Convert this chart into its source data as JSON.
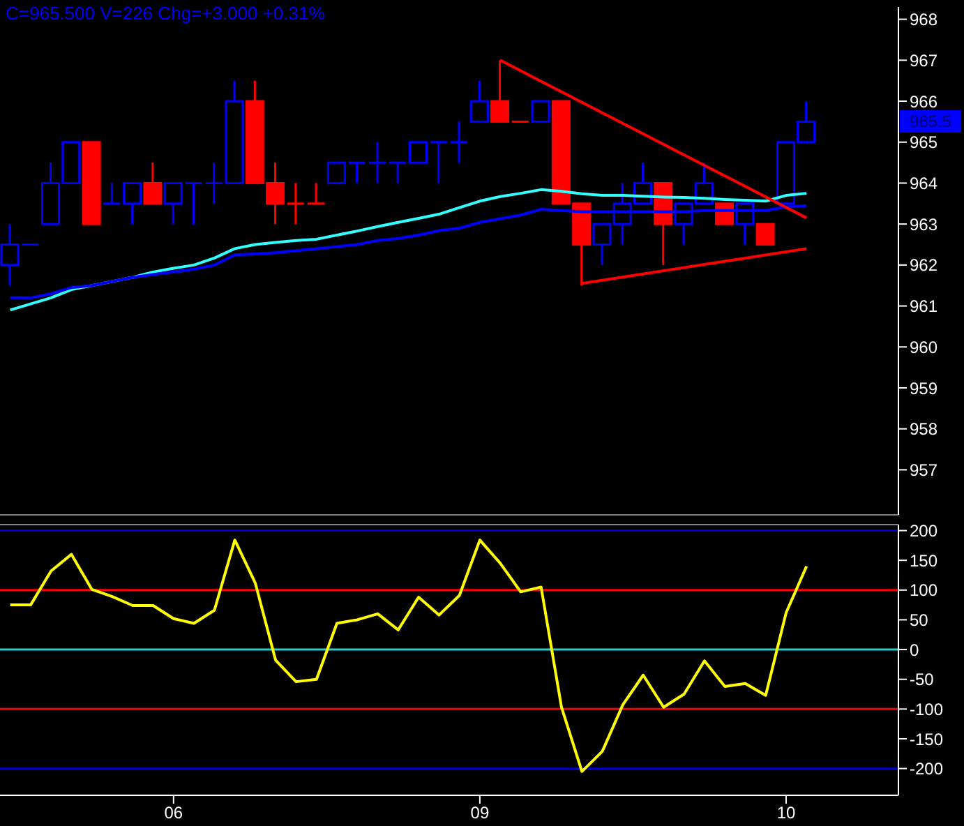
{
  "chart_data": [
    {
      "type": "candlestick",
      "title": "C=965.500  V=226  Chg=+3.000  +0.31%",
      "categories": [
        null,
        null,
        null,
        null,
        null,
        null,
        null,
        null,
        "06",
        null,
        null,
        null,
        null,
        null,
        null,
        null,
        null,
        null,
        null,
        null,
        null,
        null,
        null,
        "09",
        null,
        null,
        null,
        null,
        null,
        null,
        null,
        null,
        null,
        null,
        null,
        null,
        null,
        null,
        "10",
        null
      ],
      "ohlc": [
        [
          962,
          963,
          961.5,
          962.5
        ],
        [
          962.5,
          962.5,
          962.5,
          962.5
        ],
        [
          963,
          964.5,
          963,
          964
        ],
        [
          964,
          965,
          964,
          965
        ],
        [
          965,
          965,
          963,
          963
        ],
        [
          963.5,
          964,
          963.5,
          963.5
        ],
        [
          963.5,
          964,
          963,
          964
        ],
        [
          964,
          964.5,
          963.5,
          963.5
        ],
        [
          963.5,
          964,
          963,
          964
        ],
        [
          964,
          964,
          963,
          964
        ],
        [
          964,
          964.5,
          963.5,
          964
        ],
        [
          964,
          966.5,
          964,
          966
        ],
        [
          966,
          966.5,
          964,
          964
        ],
        [
          964,
          964.5,
          963,
          963.5
        ],
        [
          963.5,
          964,
          963,
          963.5
        ],
        [
          963.5,
          964,
          963.5,
          963.5
        ],
        [
          964,
          964.5,
          964,
          964.5
        ],
        [
          964.5,
          964.5,
          964,
          964.5
        ],
        [
          964.5,
          965,
          964,
          964.5
        ],
        [
          964.5,
          964.5,
          964,
          964.5
        ],
        [
          964.5,
          965,
          964.5,
          965
        ],
        [
          965,
          965,
          964,
          965
        ],
        [
          965,
          965.5,
          964.5,
          965
        ],
        [
          965.5,
          966.5,
          965.5,
          966
        ],
        [
          966,
          967,
          965.5,
          965.5
        ],
        [
          965.5,
          965.5,
          965.5,
          965.5
        ],
        [
          965.5,
          966,
          965.5,
          966
        ],
        [
          966,
          966,
          963.5,
          963.5
        ],
        [
          963.5,
          963.5,
          961.5,
          962.5
        ],
        [
          962.5,
          963,
          962,
          963
        ],
        [
          963,
          964,
          962.5,
          963.5
        ],
        [
          963.5,
          964.5,
          963.5,
          964
        ],
        [
          964,
          964,
          962,
          963
        ],
        [
          963,
          963.5,
          962.5,
          963.5
        ],
        [
          963.5,
          964.5,
          963.5,
          964
        ],
        [
          963.5,
          963.5,
          963,
          963
        ],
        [
          963,
          963.5,
          962.5,
          963.5
        ],
        [
          963,
          963,
          962.5,
          962.5
        ],
        [
          963.5,
          965,
          963.5,
          965
        ],
        [
          965,
          966,
          965,
          965.5
        ]
      ],
      "colors": [
        "#0000ff",
        "#0000ff",
        "#0000ff",
        "#0000ff",
        "#ff0000",
        "#0000ff",
        "#0000ff",
        "#ff0000",
        "#0000ff",
        "#0000ff",
        "#0000ff",
        "#0000ff",
        "#ff0000",
        "#ff0000",
        "#ff0000",
        "#ff0000",
        "#0000ff",
        "#0000ff",
        "#0000ff",
        "#0000ff",
        "#0000ff",
        "#0000ff",
        "#0000ff",
        "#0000ff",
        "#ff0000",
        "#ff0000",
        "#0000ff",
        "#ff0000",
        "#ff0000",
        "#0000ff",
        "#0000ff",
        "#0000ff",
        "#ff0000",
        "#0000ff",
        "#0000ff",
        "#ff0000",
        "#0000ff",
        "#ff0000",
        "#0000ff",
        "#0000ff"
      ],
      "series": [
        {
          "type": "line",
          "color": "#33ffff",
          "values": [
            960.9,
            961.05,
            961.2,
            961.4,
            961.5,
            961.6,
            961.7,
            961.83,
            961.92,
            962.0,
            962.17,
            962.4,
            962.5,
            962.55,
            962.6,
            962.63,
            962.73,
            962.83,
            962.94,
            963.04,
            963.14,
            963.24,
            963.4,
            963.56,
            963.67,
            963.75,
            963.84,
            963.8,
            963.74,
            963.7,
            963.7,
            963.68,
            963.66,
            963.65,
            963.63,
            963.6,
            963.58,
            963.56,
            963.7,
            963.75
          ]
        },
        {
          "type": "line",
          "color": "#0000ff",
          "values": [
            961.2,
            961.2,
            961.3,
            961.45,
            961.5,
            961.6,
            961.7,
            961.77,
            961.83,
            961.9,
            962.0,
            962.25,
            962.27,
            962.3,
            962.35,
            962.4,
            962.45,
            962.5,
            962.6,
            962.65,
            962.73,
            962.84,
            962.9,
            963.04,
            963.13,
            963.22,
            963.36,
            963.33,
            963.3,
            963.3,
            963.3,
            963.3,
            963.3,
            963.3,
            963.33,
            963.33,
            963.33,
            963.33,
            963.42,
            963.45
          ]
        },
        {
          "type": "line",
          "color": "#ff0000",
          "values": [
            null,
            null,
            null,
            null,
            null,
            null,
            null,
            null,
            null,
            null,
            null,
            null,
            null,
            null,
            null,
            null,
            null,
            null,
            null,
            null,
            null,
            null,
            null,
            null,
            967,
            null,
            null,
            null,
            null,
            null,
            null,
            null,
            null,
            null,
            null,
            null,
            null,
            null,
            null,
            963.15
          ]
        },
        {
          "type": "line",
          "color": "#ff0000",
          "values": [
            null,
            null,
            null,
            null,
            null,
            null,
            null,
            null,
            null,
            null,
            null,
            null,
            null,
            null,
            null,
            null,
            null,
            null,
            null,
            null,
            null,
            null,
            null,
            null,
            null,
            null,
            null,
            null,
            961.55,
            null,
            null,
            null,
            null,
            null,
            null,
            null,
            null,
            null,
            null,
            962.4
          ]
        }
      ],
      "ylim": [
        955.9,
        968.3
      ],
      "yticks": [
        957,
        958,
        959,
        960,
        961,
        962,
        963,
        964,
        965,
        966,
        967,
        968
      ],
      "tick_labels": "y",
      "annotations": [
        "965.5"
      ]
    },
    {
      "type": "line",
      "categories": [
        null,
        null,
        null,
        null,
        null,
        null,
        null,
        null,
        "06",
        null,
        null,
        null,
        null,
        null,
        null,
        null,
        null,
        null,
        null,
        null,
        null,
        null,
        null,
        "09",
        null,
        null,
        null,
        null,
        null,
        null,
        null,
        null,
        null,
        null,
        null,
        null,
        null,
        null,
        "10",
        null
      ],
      "series": [
        {
          "color": "#ffff00",
          "values": [
            75,
            75,
            132,
            160,
            101,
            89,
            74,
            74,
            52,
            44,
            66,
            184,
            112,
            -18,
            -54,
            -50,
            44,
            50,
            60,
            33,
            88,
            58,
            91,
            184,
            145,
            97,
            105,
            -97,
            -205,
            -171,
            -93,
            -43,
            -97,
            -75,
            -19,
            -62,
            -57,
            -77,
            62,
            140
          ]
        }
      ],
      "ylim": [
        -245,
        210
      ],
      "yticks": [
        -200,
        -150,
        -100,
        -50,
        0,
        50,
        100,
        150,
        200
      ],
      "ref_lines": [
        {
          "axis": "y",
          "value": 200,
          "color": "#0000cc"
        },
        {
          "axis": "y",
          "value": 100,
          "color": "#ff0000"
        },
        {
          "axis": "y",
          "value": 0,
          "color": "#33cccc"
        },
        {
          "axis": "y",
          "value": -100,
          "color": "#ff0000"
        },
        {
          "axis": "y",
          "value": -200,
          "color": "#0000cc"
        }
      ]
    }
  ]
}
